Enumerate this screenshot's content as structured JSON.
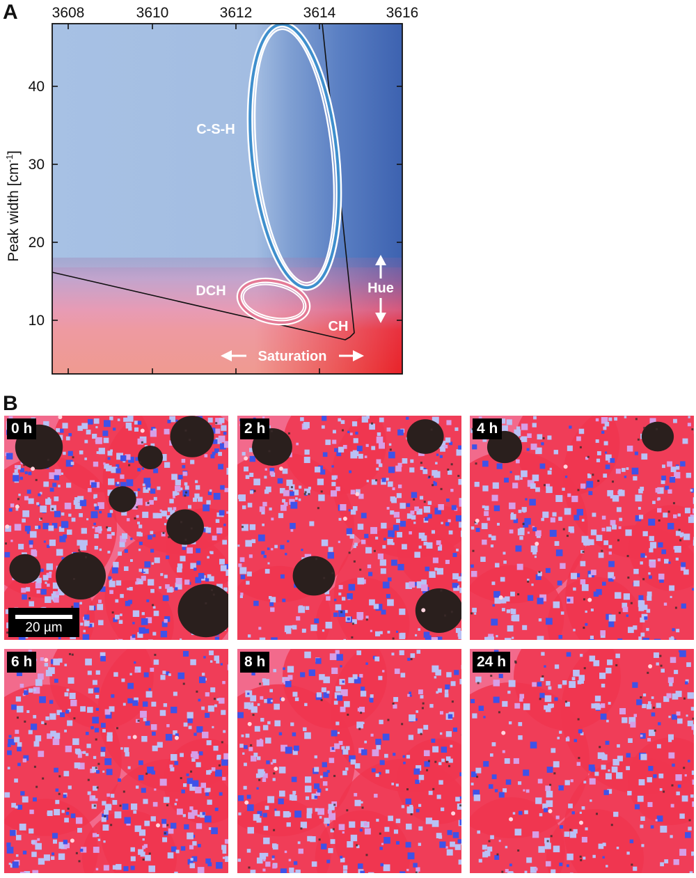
{
  "panel_a": {
    "letter": "A",
    "x_ticks": [
      "3608",
      "3610",
      "3612",
      "3614",
      "3616"
    ],
    "y_ticks": [
      "10",
      "20",
      "30",
      "40"
    ],
    "ylabel_main": "Peak width [cm",
    "ylabel_sup": "-1",
    "ylabel_end": "]",
    "labels": {
      "csh": "C-S-H",
      "dch": "DCH",
      "ch": "CH",
      "hue": "Hue",
      "saturation": "Saturation"
    },
    "colors": {
      "light_blue": "#a7c1e4",
      "dark_blue": "#4266b2",
      "pink": "#e994a6",
      "red": "#e92329",
      "csh_ring": "#3f8fcd",
      "dch_ring": "#e47a96"
    }
  },
  "panel_b": {
    "letter": "B",
    "tiles": [
      {
        "label": "0 h",
        "dark_fraction": 0.3,
        "blue_fraction": 0.45
      },
      {
        "label": "2 h",
        "dark_fraction": 0.16,
        "blue_fraction": 0.3
      },
      {
        "label": "4 h",
        "dark_fraction": 0.06,
        "blue_fraction": 0.26
      },
      {
        "label": "6 h",
        "dark_fraction": 0.0,
        "blue_fraction": 0.28
      },
      {
        "label": "8 h",
        "dark_fraction": 0.0,
        "blue_fraction": 0.27
      },
      {
        "label": "24 h",
        "dark_fraction": 0.0,
        "blue_fraction": 0.2
      }
    ],
    "scale_bar": "20 µm"
  }
}
